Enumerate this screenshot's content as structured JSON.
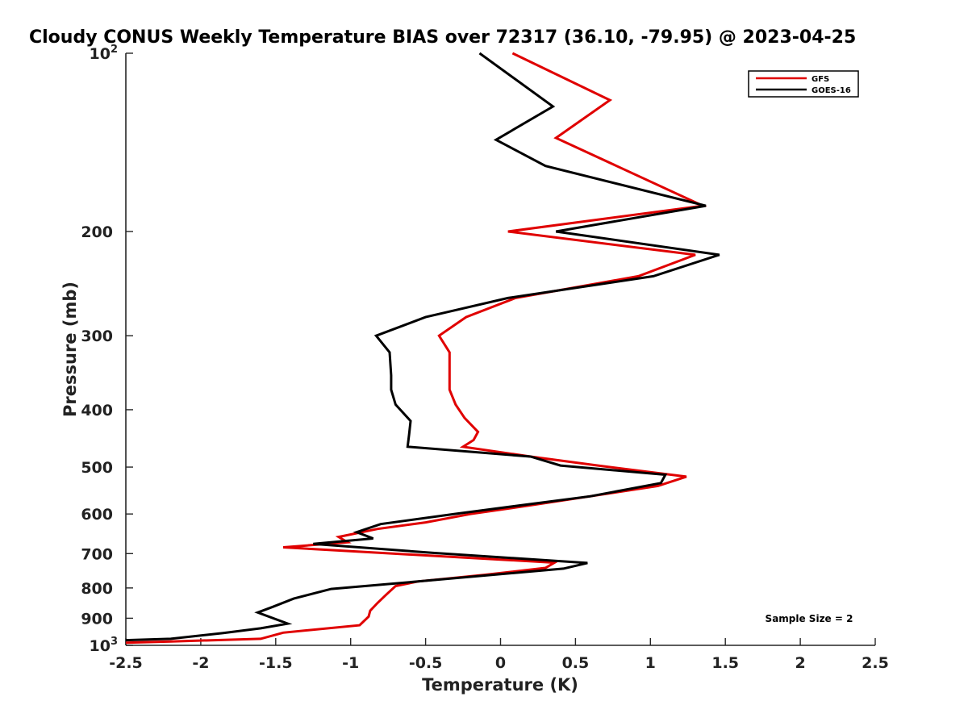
{
  "chart_data": {
    "type": "line",
    "title": "Cloudy CONUS Weekly Temperature BIAS over 72317 (36.10, -79.95) @ 2023-04-25",
    "xlabel": "Temperature (K)",
    "ylabel": "Pressure (mb)",
    "xlim": [
      -2.5,
      2.5
    ],
    "ylim": [
      100,
      1000
    ],
    "yscale": "log",
    "ydirection": "reversed",
    "grid": false,
    "legend_position": "top-right",
    "x_ticks": [
      {
        "value": -2.5,
        "label": "-2.5"
      },
      {
        "value": -2,
        "label": "-2"
      },
      {
        "value": -1.5,
        "label": "-1.5"
      },
      {
        "value": -1,
        "label": "-1"
      },
      {
        "value": -0.5,
        "label": "-0.5"
      },
      {
        "value": 0,
        "label": "0"
      },
      {
        "value": 0.5,
        "label": "0.5"
      },
      {
        "value": 1,
        "label": "1"
      },
      {
        "value": 1.5,
        "label": "1.5"
      },
      {
        "value": 2,
        "label": "2"
      },
      {
        "value": 2.5,
        "label": "2.5"
      }
    ],
    "y_ticks": [
      {
        "value": 100,
        "base": "10",
        "exp": "2"
      },
      {
        "value": 200,
        "base": "200",
        "exp": ""
      },
      {
        "value": 300,
        "base": "300",
        "exp": ""
      },
      {
        "value": 400,
        "base": "400",
        "exp": ""
      },
      {
        "value": 500,
        "base": "500",
        "exp": ""
      },
      {
        "value": 600,
        "base": "600",
        "exp": ""
      },
      {
        "value": 700,
        "base": "700",
        "exp": ""
      },
      {
        "value": 800,
        "base": "800",
        "exp": ""
      },
      {
        "value": 900,
        "base": "900",
        "exp": ""
      },
      {
        "value": 1000,
        "base": "10",
        "exp": "3"
      }
    ],
    "series": [
      {
        "name": "GFS",
        "color": "#e00000",
        "points": [
          [
            0.08,
            100
          ],
          [
            0.73,
            120
          ],
          [
            0.37,
            139
          ],
          [
            1.35,
            181
          ],
          [
            0.05,
            200
          ],
          [
            1.3,
            219
          ],
          [
            0.92,
            238
          ],
          [
            0.1,
            259
          ],
          [
            -0.23,
            279
          ],
          [
            -0.41,
            300
          ],
          [
            -0.34,
            320
          ],
          [
            -0.34,
            350
          ],
          [
            -0.34,
            370
          ],
          [
            -0.3,
            392
          ],
          [
            -0.24,
            413
          ],
          [
            -0.15,
            436
          ],
          [
            -0.18,
            450
          ],
          [
            -0.25,
            462
          ],
          [
            0.2,
            480
          ],
          [
            0.65,
            497
          ],
          [
            1.24,
            519
          ],
          [
            1.05,
            538
          ],
          [
            0.6,
            560
          ],
          [
            0.2,
            580
          ],
          [
            -0.2,
            600
          ],
          [
            -0.5,
            620
          ],
          [
            -0.82,
            636
          ],
          [
            -1.08,
            656
          ],
          [
            -1.02,
            670
          ],
          [
            -1.45,
            683
          ],
          [
            -0.8,
            698
          ],
          [
            0.36,
            725
          ],
          [
            0.3,
            740
          ],
          [
            -0.1,
            760
          ],
          [
            -0.55,
            780
          ],
          [
            -0.7,
            794
          ],
          [
            -0.76,
            820
          ],
          [
            -0.82,
            848
          ],
          [
            -0.87,
            874
          ],
          [
            -0.88,
            894
          ],
          [
            -0.94,
            925
          ],
          [
            -1.45,
            952
          ],
          [
            -1.6,
            975
          ],
          [
            -2.2,
            985
          ],
          [
            -2.5,
            990
          ]
        ]
      },
      {
        "name": "GOES-16",
        "color": "#000000",
        "points": [
          [
            -0.14,
            100
          ],
          [
            0.35,
            123
          ],
          [
            -0.03,
            140
          ],
          [
            0.3,
            155
          ],
          [
            1.37,
            181
          ],
          [
            0.37,
            200
          ],
          [
            1.46,
            219
          ],
          [
            1.02,
            238
          ],
          [
            0.05,
            259
          ],
          [
            -0.5,
            279
          ],
          [
            -0.83,
            300
          ],
          [
            -0.74,
            320
          ],
          [
            -0.73,
            350
          ],
          [
            -0.73,
            370
          ],
          [
            -0.7,
            392
          ],
          [
            -0.6,
            418
          ],
          [
            -0.61,
            440
          ],
          [
            -0.62,
            462
          ],
          [
            0.2,
            480
          ],
          [
            0.4,
            497
          ],
          [
            1.1,
            515
          ],
          [
            1.07,
            532
          ],
          [
            0.6,
            560
          ],
          [
            -0.31,
            600
          ],
          [
            -0.8,
            624
          ],
          [
            -0.96,
            644
          ],
          [
            -0.85,
            660
          ],
          [
            -1.25,
            674
          ],
          [
            -0.45,
            698
          ],
          [
            0.58,
            726
          ],
          [
            0.42,
            742
          ],
          [
            -0.55,
            780
          ],
          [
            -1.13,
            803
          ],
          [
            -1.38,
            834
          ],
          [
            -1.52,
            861
          ],
          [
            -1.62,
            880
          ],
          [
            -1.42,
            919
          ],
          [
            -1.6,
            936
          ],
          [
            -1.85,
            953
          ],
          [
            -2.2,
            975
          ],
          [
            -2.5,
            980
          ]
        ]
      }
    ],
    "annotations": [
      {
        "text": "Sample Size = 2",
        "position": "bottom-right"
      }
    ]
  }
}
